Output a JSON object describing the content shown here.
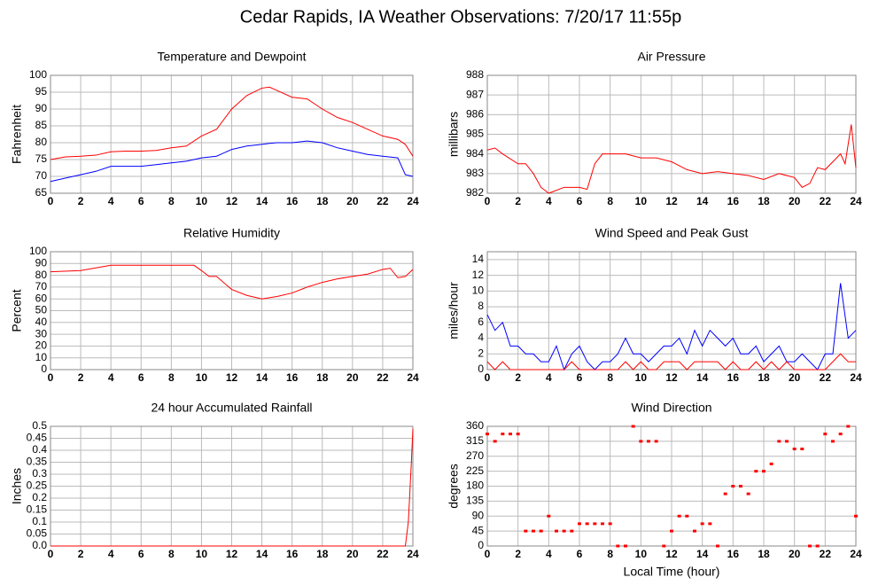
{
  "title": "Cedar Rapids, IA Weather Observations: 7/20/17 11:55p",
  "chart_data": [
    {
      "type": "line",
      "title": "Temperature and Dewpoint",
      "y_label": "Fahrenheit",
      "x": [
        0,
        1,
        2,
        3,
        4,
        5,
        6,
        7,
        8,
        9,
        10,
        11,
        12,
        13,
        14,
        14.5,
        15,
        16,
        17,
        18,
        19,
        20,
        21,
        22,
        23,
        23.5,
        24
      ],
      "series": [
        {
          "color": "#ff0000",
          "values": [
            75,
            75.8,
            76,
            76.3,
            77.3,
            77.5,
            77.5,
            77.7,
            78.5,
            79,
            82,
            84,
            90,
            94,
            96.2,
            96.5,
            95.5,
            93.5,
            93,
            90,
            87.5,
            86,
            84,
            82,
            81,
            79.5,
            76
          ]
        },
        {
          "color": "#0000ff",
          "values": [
            68.5,
            69.5,
            70.5,
            71.5,
            73,
            73,
            73,
            73.5,
            74,
            74.5,
            75.5,
            76,
            78,
            79,
            79.5,
            79.8,
            80,
            80,
            80.5,
            80,
            78.5,
            77.5,
            76.5,
            76,
            75.5,
            70.5,
            70
          ]
        }
      ],
      "xlim": [
        0,
        24
      ],
      "xticks": [
        0,
        2,
        4,
        6,
        8,
        10,
        12,
        14,
        16,
        18,
        20,
        22,
        24
      ],
      "ylim": [
        65,
        100
      ],
      "yticks": [
        65,
        70,
        75,
        80,
        85,
        90,
        95,
        100
      ],
      "grid": true
    },
    {
      "type": "line",
      "title": "Air Pressure",
      "y_label": "millibars",
      "x": [
        0,
        0.5,
        1,
        2,
        2.5,
        3,
        3.5,
        4,
        5,
        6,
        6.5,
        7,
        7.5,
        8,
        9,
        10,
        11,
        12,
        13,
        14,
        15,
        16,
        17,
        18,
        19,
        20,
        20.5,
        21,
        21.5,
        22,
        23,
        23.3,
        23.7,
        24
      ],
      "series": [
        {
          "color": "#ff0000",
          "values": [
            984.2,
            984.3,
            984,
            983.5,
            983.5,
            983,
            982.3,
            982,
            982.3,
            982.3,
            982.2,
            983.5,
            984,
            984,
            984,
            983.8,
            983.8,
            983.6,
            983.2,
            983,
            983.1,
            983,
            982.9,
            982.7,
            983,
            982.8,
            982.3,
            982.5,
            983.3,
            983.2,
            984,
            983.5,
            985.5,
            983.3
          ]
        }
      ],
      "xlim": [
        0,
        24
      ],
      "xticks": [
        0,
        2,
        4,
        6,
        8,
        10,
        12,
        14,
        16,
        18,
        20,
        22,
        24
      ],
      "ylim": [
        982,
        988
      ],
      "yticks": [
        982,
        983,
        984,
        985,
        986,
        987,
        988
      ],
      "grid": true
    },
    {
      "type": "line",
      "title": "Relative Humidity",
      "y_label": "Percent",
      "x": [
        0,
        2,
        4,
        9.5,
        10,
        10.5,
        11,
        12,
        13,
        14,
        15,
        16,
        17,
        18,
        19,
        20,
        21,
        22,
        22.5,
        23,
        23.5,
        24
      ],
      "series": [
        {
          "color": "#ff0000",
          "values": [
            83,
            84,
            88.5,
            88.5,
            84,
            79,
            79,
            68,
            63,
            60,
            62,
            65,
            70,
            74,
            77,
            79,
            81,
            85,
            86,
            78,
            79,
            85
          ]
        }
      ],
      "xlim": [
        0,
        24
      ],
      "xticks": [
        0,
        2,
        4,
        6,
        8,
        10,
        12,
        14,
        16,
        18,
        20,
        22,
        24
      ],
      "ylim": [
        0,
        100
      ],
      "yticks": [
        0,
        10,
        20,
        30,
        40,
        50,
        60,
        70,
        80,
        90,
        100
      ],
      "grid": true
    },
    {
      "type": "line",
      "title": "Wind Speed and Peak Gust",
      "y_label": "miles/hour",
      "x": [
        0,
        0.5,
        1,
        1.5,
        2,
        2.5,
        3,
        3.5,
        4,
        4.5,
        5,
        5.5,
        6,
        6.5,
        7,
        7.5,
        8,
        8.5,
        9,
        9.5,
        10,
        10.5,
        11,
        11.5,
        12,
        12.5,
        13,
        13.5,
        14,
        14.5,
        15,
        15.5,
        16,
        16.5,
        17,
        17.5,
        18,
        18.5,
        19,
        19.5,
        20,
        20.5,
        21,
        21.5,
        22,
        22.5,
        23,
        23.5,
        24
      ],
      "series": [
        {
          "color": "#0000ff",
          "values": [
            7,
            5,
            6,
            3,
            3,
            2,
            2,
            1,
            1,
            3,
            0,
            2,
            3,
            1,
            0,
            1,
            1,
            2,
            4,
            2,
            2,
            1,
            2,
            3,
            3,
            4,
            2,
            5,
            3,
            5,
            4,
            3,
            4,
            2,
            2,
            3,
            1,
            2,
            3,
            1,
            1,
            2,
            1,
            0,
            2,
            2,
            11,
            4,
            5
          ]
        },
        {
          "color": "#ff0000",
          "values": [
            1,
            0,
            1,
            0,
            0,
            0,
            0,
            0,
            0,
            0,
            0,
            1,
            0,
            0,
            0,
            0,
            0,
            0,
            1,
            0,
            1,
            0,
            0,
            1,
            1,
            1,
            0,
            1,
            1,
            1,
            1,
            0,
            1,
            0,
            0,
            1,
            0,
            1,
            0,
            1,
            0,
            0,
            0,
            0,
            0,
            1,
            2,
            1,
            1
          ]
        }
      ],
      "xlim": [
        0,
        24
      ],
      "xticks": [
        0,
        2,
        4,
        6,
        8,
        10,
        12,
        14,
        16,
        18,
        20,
        22,
        24
      ],
      "ylim": [
        0,
        15
      ],
      "yticks": [
        0,
        2,
        4,
        6,
        8,
        10,
        12,
        14
      ],
      "grid": true
    },
    {
      "type": "line",
      "title": "24 hour Accumulated Rainfall",
      "y_label": "Inches",
      "x": [
        0,
        23.5,
        23.7,
        23.9,
        24
      ],
      "series": [
        {
          "color": "#ff0000",
          "values": [
            0,
            0,
            0.1,
            0.35,
            0.49
          ]
        }
      ],
      "xlim": [
        0,
        24
      ],
      "xticks": [
        0,
        2,
        4,
        6,
        8,
        10,
        12,
        14,
        16,
        18,
        20,
        22,
        24
      ],
      "ylim": [
        0,
        0.5
      ],
      "yticks": [
        {
          "value": 0,
          "label": "0.0"
        },
        0.05,
        0.1,
        0.15,
        0.2,
        0.25,
        0.3,
        0.35,
        0.4,
        0.45,
        0.5
      ],
      "grid": true
    },
    {
      "type": "scatter",
      "title": "Wind Direction",
      "y_label": "degrees",
      "x_label": "Local Time (hour)",
      "x": [
        0,
        0.5,
        1,
        1.5,
        2,
        2.5,
        3,
        3.5,
        4,
        4.5,
        5,
        5.5,
        6,
        6.5,
        7,
        7.5,
        8,
        8.5,
        9,
        9.5,
        10,
        10.5,
        11,
        11.5,
        12,
        12.5,
        13,
        13.5,
        14,
        14.5,
        15,
        15.5,
        16,
        16.5,
        17,
        17.5,
        18,
        18.5,
        19,
        19.5,
        20,
        20.5,
        21,
        21.5,
        22,
        22.5,
        23,
        23.5,
        24
      ],
      "series": [
        {
          "color": "#ff0000",
          "values": [
            337,
            315,
            337,
            337,
            337,
            45,
            45,
            45,
            90,
            45,
            45,
            45,
            67,
            67,
            67,
            67,
            67,
            0,
            0,
            360,
            315,
            315,
            315,
            0,
            45,
            90,
            90,
            45,
            67,
            67,
            0,
            157,
            180,
            180,
            157,
            225,
            225,
            247,
            315,
            315,
            292,
            292,
            0,
            0,
            337,
            315,
            337,
            360,
            90
          ]
        }
      ],
      "xlim": [
        0,
        24
      ],
      "xticks": [
        0,
        2,
        4,
        6,
        8,
        10,
        12,
        14,
        16,
        18,
        20,
        22,
        24
      ],
      "ylim": [
        0,
        360
      ],
      "yticks": [
        0,
        45,
        90,
        135,
        180,
        225,
        270,
        315,
        360
      ],
      "grid": true
    }
  ]
}
